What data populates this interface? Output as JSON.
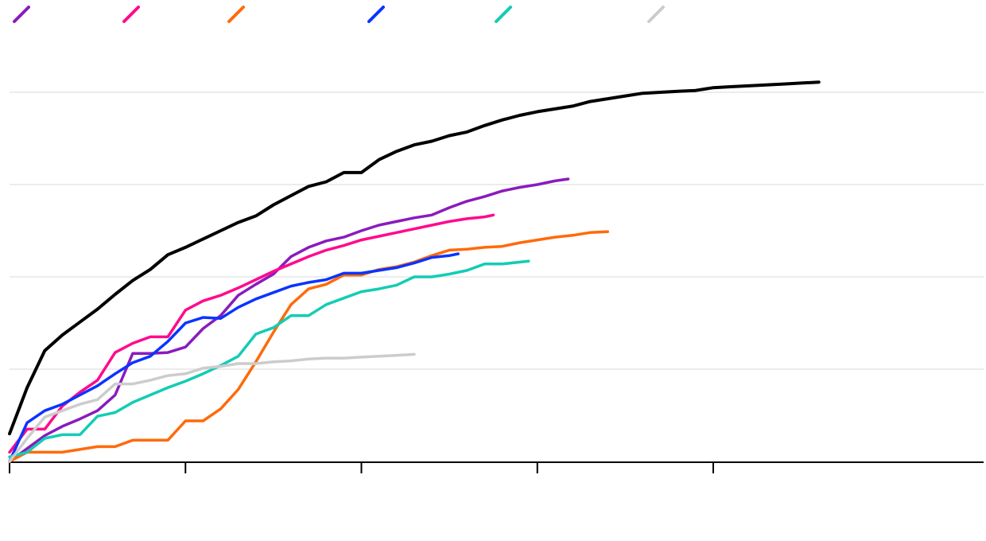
{
  "chart_data": {
    "type": "line",
    "title": "",
    "xlabel": "",
    "ylabel": "",
    "xlim": [
      0,
      1100
    ],
    "ylim": [
      0,
      400
    ],
    "x_ticks": [
      0,
      200,
      400,
      600,
      800
    ],
    "y_gridlines": [
      100,
      200,
      300,
      400
    ],
    "grid": true,
    "legend": "top-left",
    "series": [
      {
        "color": "#000000",
        "x": [
          0,
          20,
          40,
          60,
          80,
          100,
          120,
          140,
          160,
          180,
          200,
          220,
          240,
          260,
          280,
          300,
          320,
          340,
          360,
          380,
          400,
          420,
          440,
          460,
          480,
          500,
          520,
          540,
          560,
          580,
          600,
          620,
          640,
          660,
          680,
          700,
          720,
          740,
          760,
          780,
          800,
          820,
          840,
          860,
          880,
          900,
          920
        ],
        "y": [
          30,
          80,
          120,
          137,
          151,
          165,
          181,
          196,
          208,
          224,
          232,
          241,
          250,
          259,
          266,
          278,
          288,
          298,
          303,
          313,
          313,
          327,
          336,
          343,
          347,
          353,
          357,
          364,
          370,
          375,
          379,
          382,
          385,
          390,
          393,
          396,
          399,
          400,
          401,
          402,
          405,
          406,
          407,
          408,
          409,
          410,
          411
        ]
      },
      {
        "color": "#8a1bbd",
        "x": [
          0,
          20,
          40,
          60,
          80,
          100,
          120,
          140,
          160,
          180,
          200,
          220,
          240,
          260,
          280,
          300,
          320,
          340,
          360,
          380,
          400,
          420,
          440,
          460,
          480,
          500,
          520,
          540,
          560,
          580,
          600,
          620,
          635
        ],
        "y": [
          0,
          14,
          28,
          38,
          46,
          55,
          72,
          117,
          117,
          118,
          124,
          144,
          158,
          180,
          192,
          203,
          222,
          232,
          239,
          243,
          250,
          256,
          260,
          264,
          267,
          275,
          282,
          287,
          293,
          297,
          300,
          304,
          306
        ]
      },
      {
        "color": "#ff0a8c",
        "x": [
          0,
          20,
          40,
          60,
          80,
          100,
          120,
          140,
          160,
          180,
          200,
          220,
          240,
          260,
          280,
          300,
          320,
          340,
          360,
          380,
          400,
          420,
          440,
          460,
          480,
          500,
          520,
          540,
          550
        ],
        "y": [
          10,
          35,
          35,
          60,
          75,
          88,
          118,
          128,
          135,
          135,
          164,
          174,
          180,
          188,
          197,
          206,
          214,
          222,
          229,
          234,
          240,
          244,
          248,
          252,
          256,
          260,
          263,
          265,
          267
        ]
      },
      {
        "color": "#ff6a0a",
        "x": [
          0,
          20,
          40,
          60,
          80,
          100,
          120,
          140,
          160,
          180,
          200,
          220,
          240,
          260,
          280,
          300,
          320,
          340,
          360,
          380,
          400,
          420,
          440,
          460,
          480,
          500,
          520,
          540,
          560,
          580,
          600,
          620,
          640,
          660,
          680
        ],
        "y": [
          0,
          10,
          10,
          10,
          13,
          16,
          16,
          23,
          23,
          23,
          44,
          44,
          57,
          78,
          108,
          140,
          170,
          187,
          192,
          202,
          202,
          208,
          211,
          216,
          223,
          229,
          230,
          232,
          233,
          237,
          240,
          243,
          245,
          248,
          249
        ]
      },
      {
        "color": "#0a34ff",
        "x": [
          0,
          20,
          40,
          60,
          80,
          100,
          120,
          140,
          160,
          180,
          200,
          220,
          240,
          260,
          280,
          300,
          320,
          340,
          360,
          380,
          400,
          420,
          440,
          460,
          480,
          500,
          510
        ],
        "y": [
          0,
          42,
          55,
          62,
          72,
          82,
          95,
          107,
          114,
          130,
          150,
          156,
          155,
          167,
          176,
          183,
          190,
          194,
          197,
          204,
          204,
          207,
          210,
          215,
          221,
          223,
          225
        ]
      },
      {
        "color": "#14ccb4",
        "x": [
          0,
          20,
          40,
          60,
          80,
          100,
          120,
          140,
          160,
          180,
          200,
          220,
          240,
          260,
          280,
          300,
          320,
          340,
          360,
          380,
          400,
          420,
          440,
          460,
          480,
          500,
          520,
          540,
          560,
          590
        ],
        "y": [
          5,
          10,
          25,
          29,
          29,
          49,
          53,
          64,
          72,
          80,
          87,
          95,
          104,
          114,
          138,
          145,
          158,
          158,
          170,
          177,
          184,
          187,
          191,
          200,
          200,
          203,
          207,
          214,
          214,
          217
        ]
      },
      {
        "color": "#cccccc",
        "x": [
          0,
          20,
          40,
          60,
          80,
          100,
          120,
          140,
          160,
          180,
          200,
          220,
          240,
          260,
          280,
          300,
          320,
          340,
          360,
          380,
          400,
          420,
          440,
          460
        ],
        "y": [
          0,
          25,
          48,
          55,
          62,
          67,
          84,
          84,
          88,
          93,
          95,
          101,
          103,
          106,
          106,
          108,
          109,
          111,
          112,
          112,
          113,
          114,
          115,
          116
        ]
      }
    ],
    "legend_swatches": [
      "#8a1bbd",
      "#ff0a8c",
      "#ff6a0a",
      "#0a34ff",
      "#14ccb4",
      "#cccccc"
    ]
  }
}
